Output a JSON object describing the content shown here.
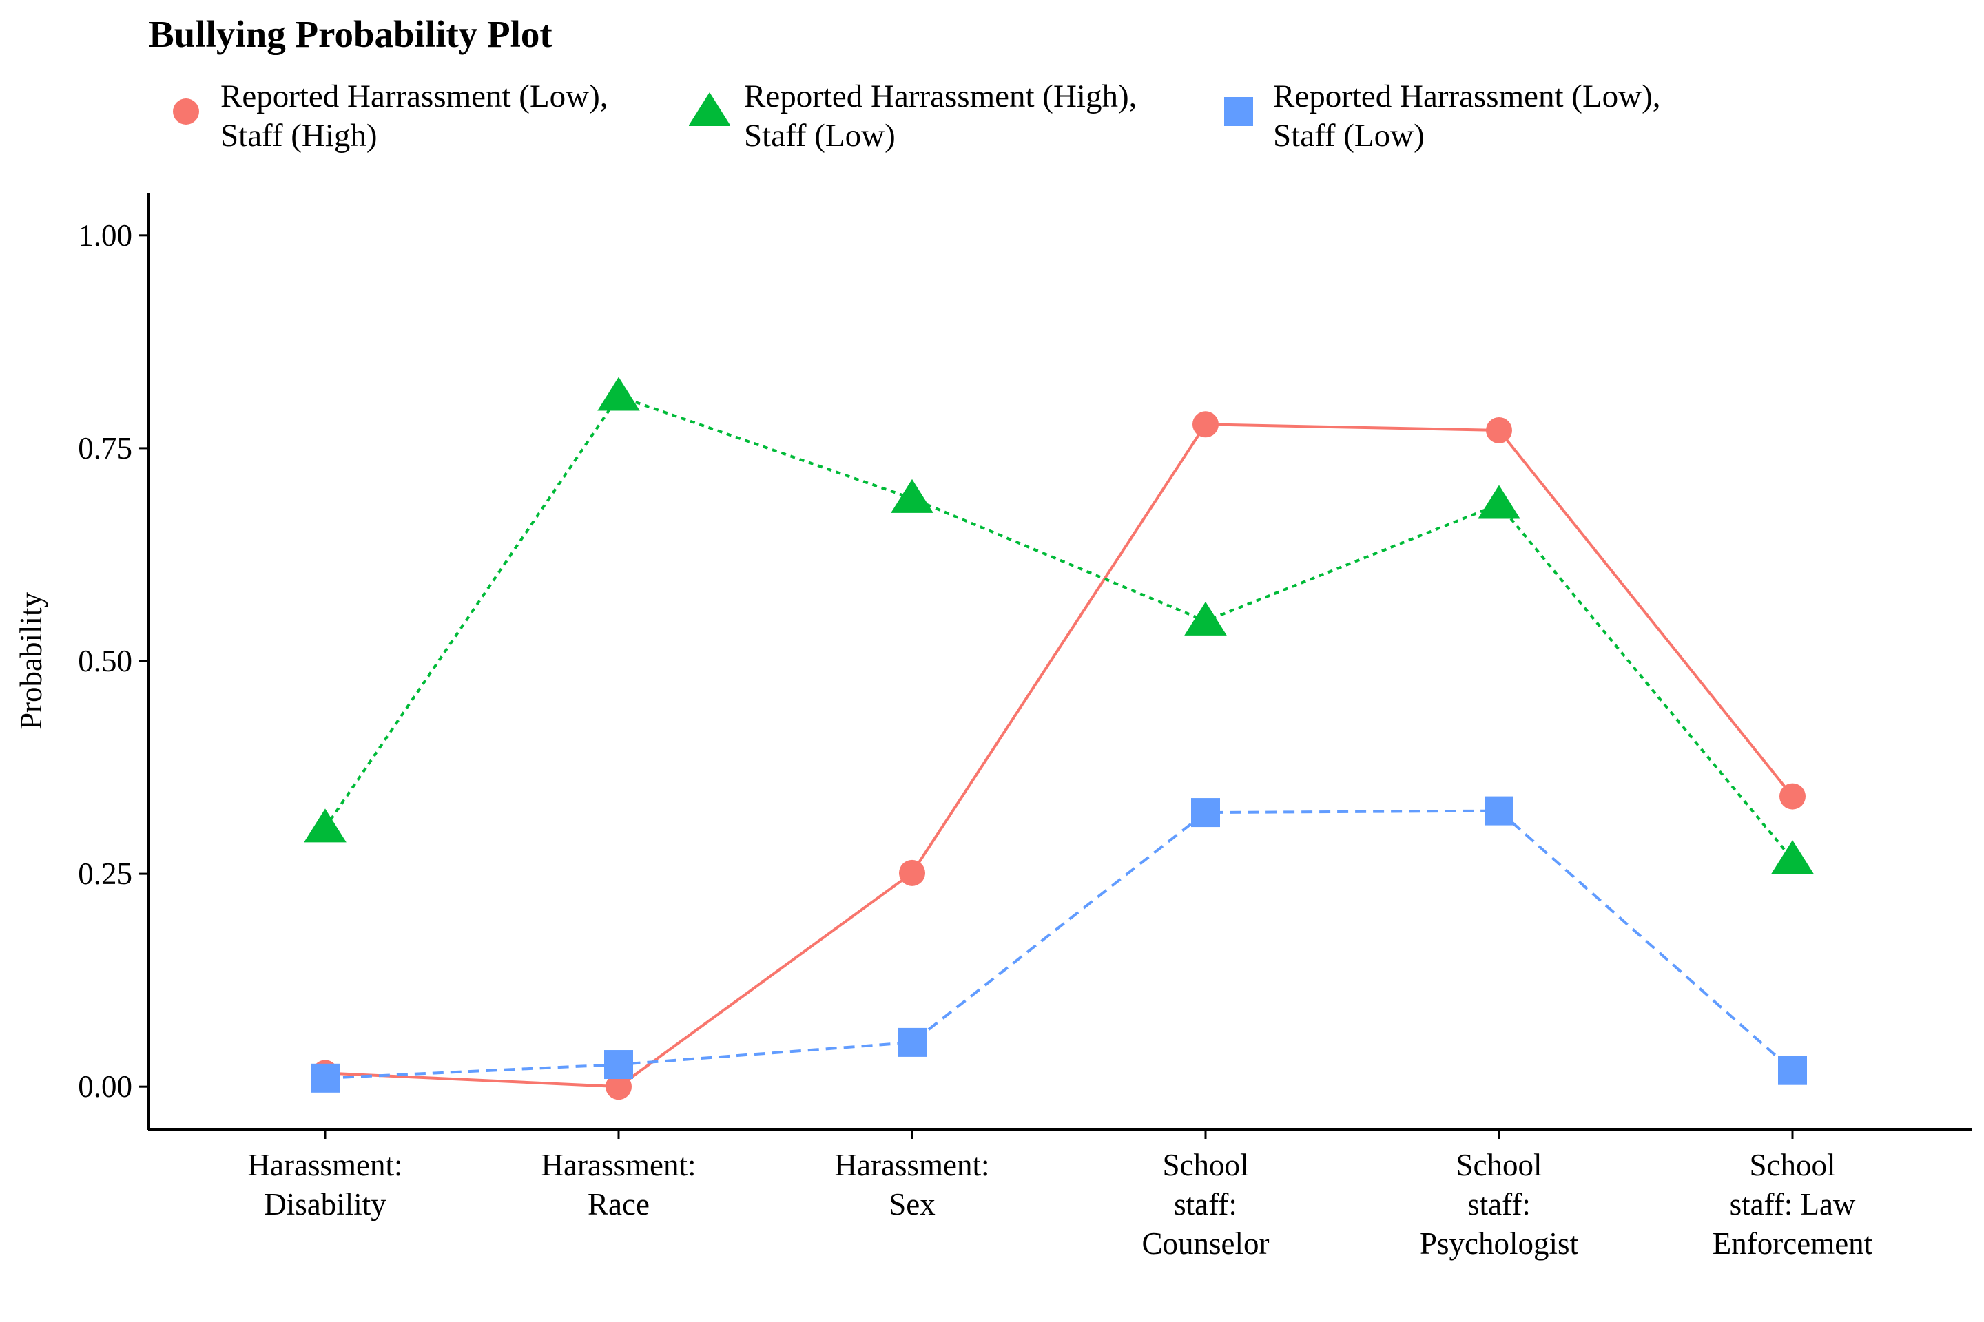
{
  "chart_data": {
    "type": "line",
    "title": "Bullying Probability Plot",
    "xlabel": "",
    "ylabel": "Probability",
    "ylim": [
      -0.05,
      1.05
    ],
    "yticks": [
      0,
      0.25,
      0.5,
      0.75,
      1
    ],
    "ytick_labels": [
      "0.00",
      "0.25",
      "0.50",
      "0.75",
      "1.00"
    ],
    "categories": [
      [
        "Harassment:",
        "Disability"
      ],
      [
        "Harassment:",
        "Race"
      ],
      [
        "Harassment:",
        "Sex"
      ],
      [
        "School",
        "staff:",
        "Counselor"
      ],
      [
        "School",
        "staff:",
        "Psychologist"
      ],
      [
        "School",
        "staff: Law",
        "Enforcement"
      ]
    ],
    "grid": false,
    "legend_position": "top-left",
    "series": [
      {
        "name": [
          "Reported Harrassment (Low),",
          "Staff (High)"
        ],
        "marker": "circle",
        "line": "solid",
        "color": "#F8766D",
        "values": [
          0.016,
          0.0,
          0.251,
          0.778,
          0.771,
          0.341
        ]
      },
      {
        "name": [
          "Reported Harrassment (High),",
          "Staff (Low)"
        ],
        "marker": "triangle",
        "line": "dotted",
        "color": "#00BA38",
        "values": [
          0.304,
          0.811,
          0.691,
          0.547,
          0.684,
          0.267
        ]
      },
      {
        "name": [
          "Reported Harrassment (Low),",
          "Staff (Low)"
        ],
        "marker": "square",
        "line": "dashed",
        "color": "#619CFF",
        "values": [
          0.01,
          0.026,
          0.052,
          0.322,
          0.324,
          0.019
        ]
      }
    ]
  }
}
